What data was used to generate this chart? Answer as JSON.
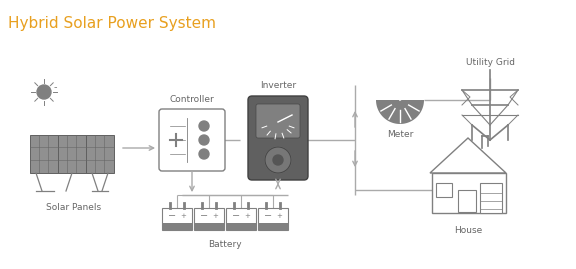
{
  "title": "Hybrid Solar Power System",
  "title_color": "#E8A020",
  "title_fontsize": 11,
  "bg_color": "#FFFFFF",
  "icon_color": "#808080",
  "icon_dark": "#555555",
  "line_color": "#AAAAAA",
  "label_color": "#666666",
  "label_fontsize": 6.5,
  "labels": {
    "solar": "Solar Panels",
    "controller": "Controller",
    "inverter": "Inverter",
    "battery": "Battery",
    "meter": "Meter",
    "grid": "Utility Grid",
    "house": "House"
  }
}
